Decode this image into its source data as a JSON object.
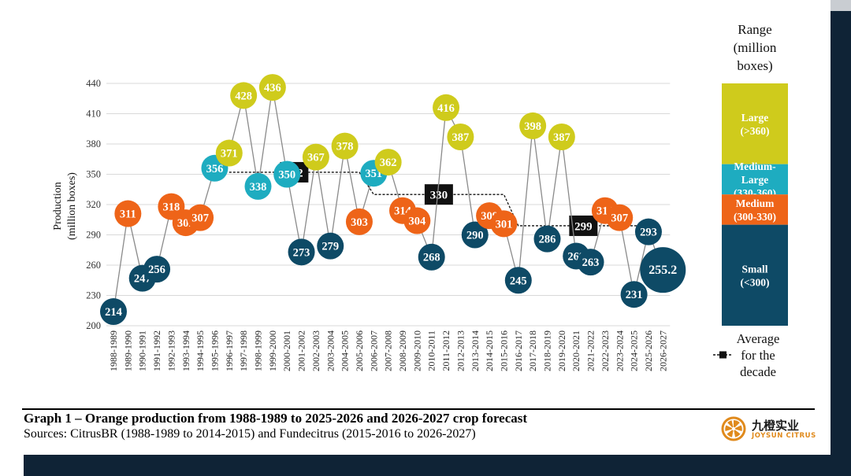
{
  "colors": {
    "small": "#0e4a66",
    "medium": "#ee6418",
    "medium_large": "#1eacc0",
    "large": "#cfcb1c",
    "line": "#8a8a8a",
    "grid": "#d9d9d9"
  },
  "chart_data": {
    "type": "line",
    "ylabel": "Production\n(million boxes)",
    "ylim": [
      200,
      440
    ],
    "yticks": [
      200,
      230,
      260,
      290,
      320,
      350,
      380,
      410,
      440
    ],
    "x": [
      "1988-1989",
      "1989-1990",
      "1990-1991",
      "1991-1992",
      "1992-1993",
      "1993-1994",
      "1994-1995",
      "1995-1996",
      "1996-1997",
      "1997-1998",
      "1998-1999",
      "1999-2000",
      "2000-2001",
      "2001-2002",
      "2002-2003",
      "2003-2004",
      "2004-2005",
      "2005-2006",
      "2006-2007",
      "2007-2008",
      "2008-2009",
      "2009-2010",
      "2010-2011",
      "2011-2012",
      "2012-2013",
      "2013-2014",
      "2014-2015",
      "2015-2016",
      "2016-2017",
      "2017-2018",
      "2018-2019",
      "2019-2020",
      "2020-2021",
      "2021-2022",
      "2022-2023",
      "2023-2024",
      "2024-2025",
      "2025-2026",
      "2026-2027"
    ],
    "series": [
      {
        "values": [
          214,
          311,
          247,
          256,
          318,
          302,
          307,
          356,
          371,
          428,
          338,
          436,
          350,
          273,
          367,
          279,
          378,
          303,
          351,
          362,
          314,
          304,
          268,
          416,
          387,
          290,
          309,
          301,
          245,
          398,
          286,
          387,
          269,
          263,
          314,
          307,
          231,
          293,
          255.2
        ],
        "labels": [
          "214",
          "311",
          "247",
          "256",
          "318",
          "302",
          "307",
          "356",
          "371",
          "428",
          "338",
          "436",
          "350",
          "273",
          "367",
          "279",
          "378",
          "303",
          "351",
          "362",
          "314",
          "304",
          "268",
          "416",
          "387",
          "290",
          "309",
          "301",
          "245",
          "398",
          "286",
          "387",
          "269",
          "263",
          "314",
          "307",
          "231",
          "293",
          "255.2"
        ]
      },
      {
        "name": "Average for the decade",
        "segments": [
          {
            "x_start": "1996-1997",
            "x_end": "2005-2006",
            "value": 352,
            "label": "352"
          },
          {
            "x_start": "2006-2007",
            "x_end": "2015-2016",
            "value": 330,
            "label": "330"
          },
          {
            "x_start": "2016-2017",
            "x_end": "2025-2026",
            "value": 299,
            "label": "299"
          }
        ]
      }
    ],
    "legend": {
      "title": "Range\n(million\nboxes)",
      "ranges": [
        {
          "key": "large",
          "label": "Large\n(>360)"
        },
        {
          "key": "medium_large",
          "label": "Medium-\nLarge\n(330-360)"
        },
        {
          "key": "medium",
          "label": "Medium\n(300-330)"
        },
        {
          "key": "small",
          "label": "Small\n(<300)"
        }
      ],
      "average_label": "Average\nfor the\ndecade"
    }
  },
  "caption": {
    "title": "Graph 1 – Orange production from 1988-1989 to 2025-2026 and 2026-2027 crop forecast",
    "sources": "Sources: CitrusBR (1988-1989 to 2014-2015) and Fundecitrus (2015-2016 to 2026-2027)"
  },
  "logo": {
    "name_cn": "九橙实业",
    "name_en": "JOYSUN CITRUS"
  }
}
